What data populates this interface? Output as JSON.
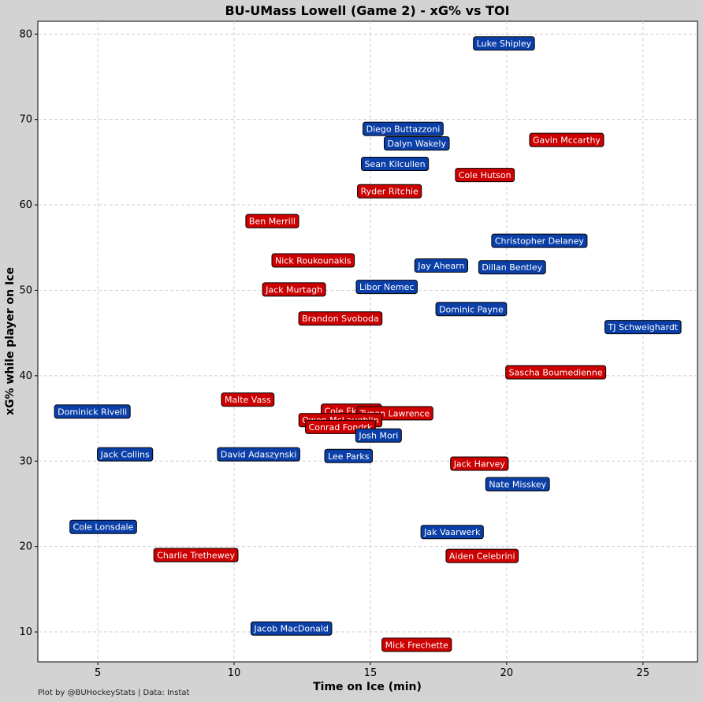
{
  "colors": {
    "background": "#d3d3d3",
    "plot_bg": "#ffffff",
    "grid": "#cfcfcf",
    "bu": "#0b3fa8",
    "uml": "#cc0000",
    "label_text": "#ffffff",
    "label_border": "#000000"
  },
  "caption": "Plot by @BUHockeyStats | Data: Instat",
  "chart_data": {
    "type": "scatter",
    "title": "BU-UMass Lowell (Game 2) - xG% vs TOI",
    "xlabel": "Time on Ice (min)",
    "ylabel": "xG% while player on Ice",
    "xlim": [
      2.8,
      27.0
    ],
    "ylim": [
      6.5,
      81.5
    ],
    "xticks": [
      5,
      10,
      15,
      20,
      25
    ],
    "yticks": [
      10,
      20,
      30,
      40,
      50,
      60,
      70,
      80
    ],
    "grid": true,
    "points": [
      {
        "name": "Luke Shipley",
        "x": 19.9,
        "y": 78.9,
        "team": "bu"
      },
      {
        "name": "Diego Buttazzoni",
        "x": 16.2,
        "y": 68.9,
        "team": "bu"
      },
      {
        "name": "Dalyn Wakely",
        "x": 16.7,
        "y": 67.2,
        "team": "bu"
      },
      {
        "name": "Gavin Mccarthy",
        "x": 22.2,
        "y": 67.6,
        "team": "uml"
      },
      {
        "name": "Sean Kilcullen",
        "x": 15.9,
        "y": 64.8,
        "team": "bu"
      },
      {
        "name": "Cole Hutson",
        "x": 19.2,
        "y": 63.5,
        "team": "uml"
      },
      {
        "name": "Ryder Ritchie",
        "x": 15.7,
        "y": 61.6,
        "team": "uml"
      },
      {
        "name": "Ben Merrill",
        "x": 11.4,
        "y": 58.1,
        "team": "uml"
      },
      {
        "name": "Christopher Delaney",
        "x": 21.2,
        "y": 55.8,
        "team": "bu"
      },
      {
        "name": "Nick Roukounakis",
        "x": 12.9,
        "y": 53.5,
        "team": "uml"
      },
      {
        "name": "Jay Ahearn",
        "x": 17.6,
        "y": 52.9,
        "team": "bu"
      },
      {
        "name": "Dillan Bentley",
        "x": 20.2,
        "y": 52.7,
        "team": "bu"
      },
      {
        "name": "Libor Nemec",
        "x": 15.6,
        "y": 50.4,
        "team": "bu"
      },
      {
        "name": "Jack Murtagh",
        "x": 12.2,
        "y": 50.1,
        "team": "uml"
      },
      {
        "name": "Dominic Payne",
        "x": 18.7,
        "y": 47.8,
        "team": "bu"
      },
      {
        "name": "Brandon Svoboda",
        "x": 13.9,
        "y": 46.7,
        "team": "uml"
      },
      {
        "name": "TJ Schweighardt",
        "x": 25.0,
        "y": 45.7,
        "team": "bu"
      },
      {
        "name": "Sascha Boumedienne",
        "x": 21.8,
        "y": 40.4,
        "team": "uml"
      },
      {
        "name": "Malte Vass",
        "x": 10.5,
        "y": 37.2,
        "team": "uml"
      },
      {
        "name": "Dominick Rivelli",
        "x": 4.8,
        "y": 35.8,
        "team": "bu"
      },
      {
        "name": "Cole Ekholm",
        "x": 14.3,
        "y": 35.9,
        "team": "uml"
      },
      {
        "name": "Tynan Lawrence",
        "x": 15.9,
        "y": 35.6,
        "team": "uml"
      },
      {
        "name": "Owen McLaughlin",
        "x": 13.9,
        "y": 34.8,
        "team": "uml"
      },
      {
        "name": "Conrad Fondrk",
        "x": 13.9,
        "y": 34.0,
        "team": "uml"
      },
      {
        "name": "Josh Mori",
        "x": 15.3,
        "y": 33.0,
        "team": "bu"
      },
      {
        "name": "Jack Collins",
        "x": 6.0,
        "y": 30.8,
        "team": "bu"
      },
      {
        "name": "David Adaszynski",
        "x": 10.9,
        "y": 30.8,
        "team": "bu"
      },
      {
        "name": "Lee Parks",
        "x": 14.2,
        "y": 30.6,
        "team": "bu"
      },
      {
        "name": "Jack Harvey",
        "x": 19.0,
        "y": 29.7,
        "team": "uml"
      },
      {
        "name": "Nate Misskey",
        "x": 20.4,
        "y": 27.3,
        "team": "bu"
      },
      {
        "name": "Cole Lonsdale",
        "x": 5.2,
        "y": 22.3,
        "team": "bu"
      },
      {
        "name": "Jak Vaarwerk",
        "x": 18.0,
        "y": 21.7,
        "team": "bu"
      },
      {
        "name": "Charlie Trethewey",
        "x": 8.6,
        "y": 19.0,
        "team": "uml"
      },
      {
        "name": "Aiden Celebrini",
        "x": 19.1,
        "y": 18.9,
        "team": "uml"
      },
      {
        "name": "Jacob MacDonald",
        "x": 12.1,
        "y": 10.4,
        "team": "bu"
      },
      {
        "name": "Mick Frechette",
        "x": 16.7,
        "y": 8.5,
        "team": "uml"
      }
    ]
  }
}
